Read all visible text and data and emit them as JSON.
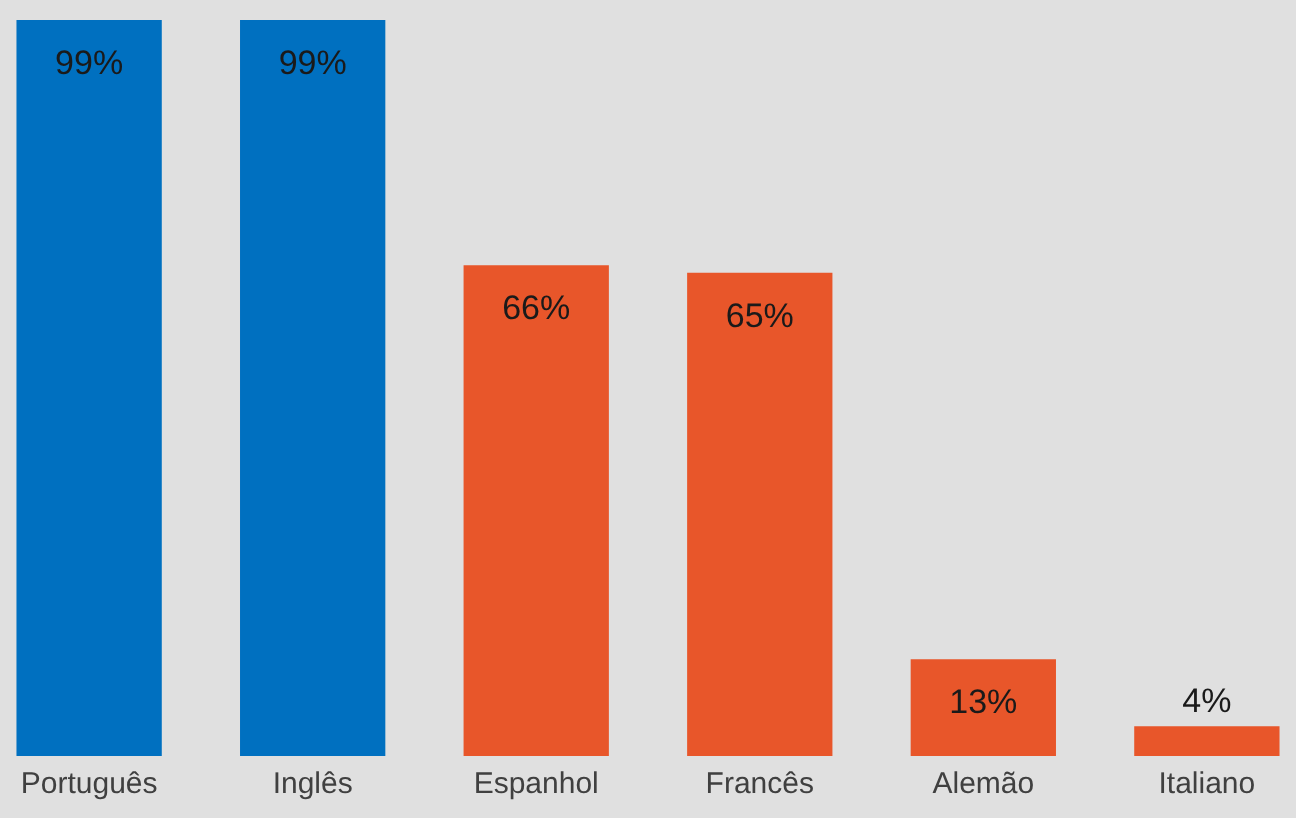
{
  "chart_data": {
    "type": "bar",
    "categories": [
      "Português",
      "Inglês",
      "Espanhol",
      "Francês",
      "Alemão",
      "Italiano"
    ],
    "values": [
      99,
      99,
      66,
      65,
      13,
      4
    ],
    "colors": [
      "#0070c0",
      "#0070c0",
      "#e8562a",
      "#e8562a",
      "#e8562a",
      "#e8562a"
    ],
    "value_labels": [
      "99%",
      "99%",
      "66%",
      "65%",
      "13%",
      "4%"
    ]
  }
}
